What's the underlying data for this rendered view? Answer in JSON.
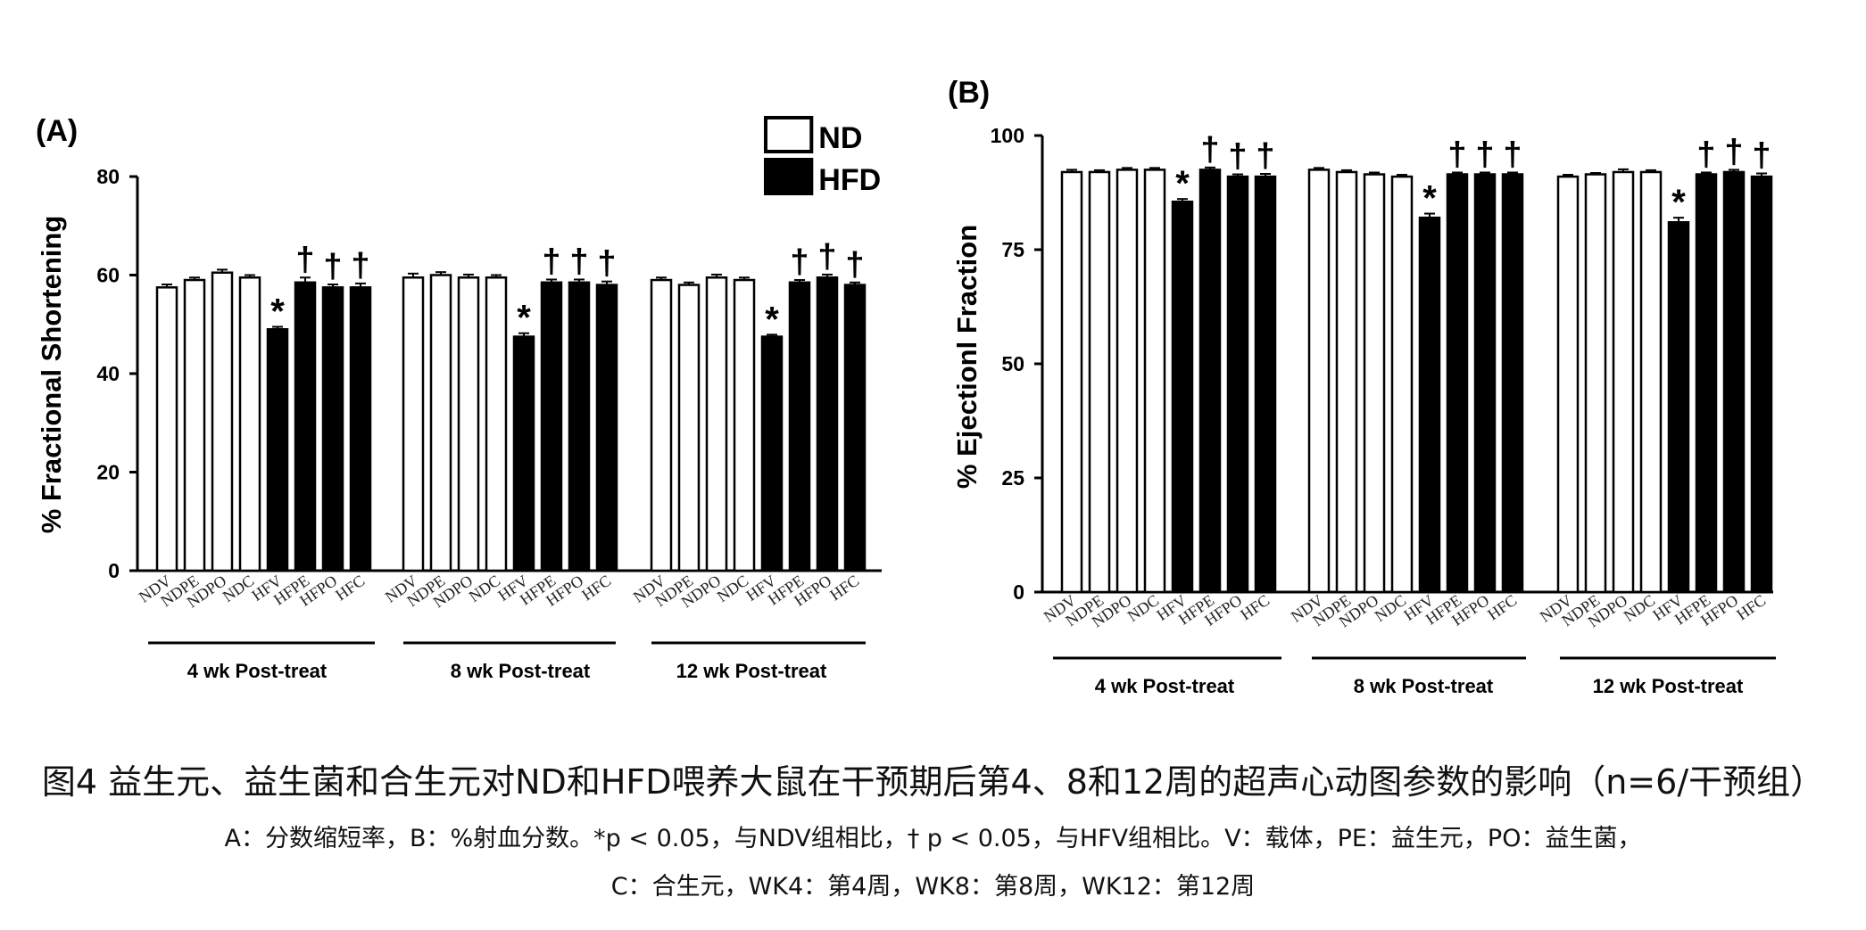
{
  "chart_data": [
    {
      "panel_label": "(A)",
      "type": "bar",
      "ylabel": "% Fractional Shortening",
      "ylim": [
        0,
        80
      ],
      "yticks": [
        0,
        20,
        40,
        60,
        80
      ],
      "categories": [
        "NDV",
        "NDPE",
        "NDPO",
        "NDC",
        "HFV",
        "HFPE",
        "HFPO",
        "HFC"
      ],
      "groups": [
        {
          "label": "4 wk Post-treat",
          "values": [
            57.5,
            59,
            60.5,
            59.5,
            49,
            58.5,
            57.5,
            57.5
          ],
          "errors": [
            0.6,
            0.5,
            0.6,
            0.5,
            0.5,
            1.0,
            0.6,
            0.8
          ],
          "annotations": [
            "",
            "",
            "",
            "",
            "*",
            "†",
            "†",
            "†"
          ]
        },
        {
          "label": "8 wk Post-treat",
          "values": [
            59.5,
            60,
            59.5,
            59.5,
            47.5,
            58.5,
            58.5,
            58
          ],
          "errors": [
            0.8,
            0.6,
            0.6,
            0.5,
            0.7,
            0.6,
            0.6,
            0.7
          ],
          "annotations": [
            "",
            "",
            "",
            "",
            "*",
            "†",
            "†",
            "†"
          ]
        },
        {
          "label": "12 wk Post-treat",
          "values": [
            59,
            58,
            59.5,
            59,
            47.5,
            58.5,
            59.5,
            58
          ],
          "errors": [
            0.5,
            0.5,
            0.6,
            0.5,
            0.4,
            0.5,
            0.6,
            0.5
          ],
          "annotations": [
            "",
            "",
            "",
            "",
            "*",
            "†",
            "†",
            "†"
          ]
        }
      ],
      "legend": {
        "position": "top-right",
        "items": [
          {
            "name": "ND",
            "fill": "#ffffff"
          },
          {
            "name": "HFD",
            "fill": "#000000"
          }
        ]
      },
      "series_fill": [
        "#ffffff",
        "#ffffff",
        "#ffffff",
        "#ffffff",
        "#000000",
        "#000000",
        "#000000",
        "#000000"
      ]
    },
    {
      "panel_label": "(B)",
      "type": "bar",
      "ylabel": "% Ejectionl Fraction",
      "ylim": [
        0,
        100
      ],
      "yticks": [
        0,
        25,
        50,
        75,
        100
      ],
      "categories": [
        "NDV",
        "NDPE",
        "NDPO",
        "NDC",
        "HFV",
        "HFPE",
        "HFPO",
        "HFC"
      ],
      "groups": [
        {
          "label": "4 wk Post-treat",
          "values": [
            92,
            92,
            92.5,
            92.5,
            85.5,
            92.5,
            91,
            91
          ],
          "errors": [
            0.5,
            0.4,
            0.4,
            0.4,
            0.6,
            0.5,
            0.5,
            0.6
          ],
          "annotations": [
            "",
            "",
            "",
            "",
            "*",
            "†",
            "†",
            "†"
          ]
        },
        {
          "label": "8 wk Post-treat",
          "values": [
            92.5,
            92,
            91.5,
            91,
            82,
            91.5,
            91.5,
            91.5
          ],
          "errors": [
            0.4,
            0.4,
            0.4,
            0.4,
            0.9,
            0.4,
            0.4,
            0.4
          ],
          "annotations": [
            "",
            "",
            "",
            "",
            "*",
            "†",
            "†",
            "†"
          ]
        },
        {
          "label": "12 wk Post-treat",
          "values": [
            91,
            91.5,
            92,
            92,
            81,
            91.5,
            92,
            91
          ],
          "errors": [
            0.4,
            0.3,
            0.6,
            0.4,
            1.0,
            0.4,
            0.5,
            0.7
          ],
          "annotations": [
            "",
            "",
            "",
            "",
            "*",
            "†",
            "†",
            "†"
          ]
        }
      ],
      "series_fill": [
        "#ffffff",
        "#ffffff",
        "#ffffff",
        "#ffffff",
        "#000000",
        "#000000",
        "#000000",
        "#000000"
      ]
    }
  ],
  "caption": {
    "title": "图4 益生元、益生菌和合生元对ND和HFD喂养大鼠在干预期后第4、8和12周的超声心动图参数的影响（n=6/干预组）",
    "line1": "A：分数缩短率，B：%射血分数。*p < 0.05，与NDV组相比，† p < 0.05，与HFV组相比。V：载体，PE：益生元，PO：益生菌，",
    "line2": "C：合生元，WK4：第4周，WK8：第8周，WK12：第12周"
  }
}
